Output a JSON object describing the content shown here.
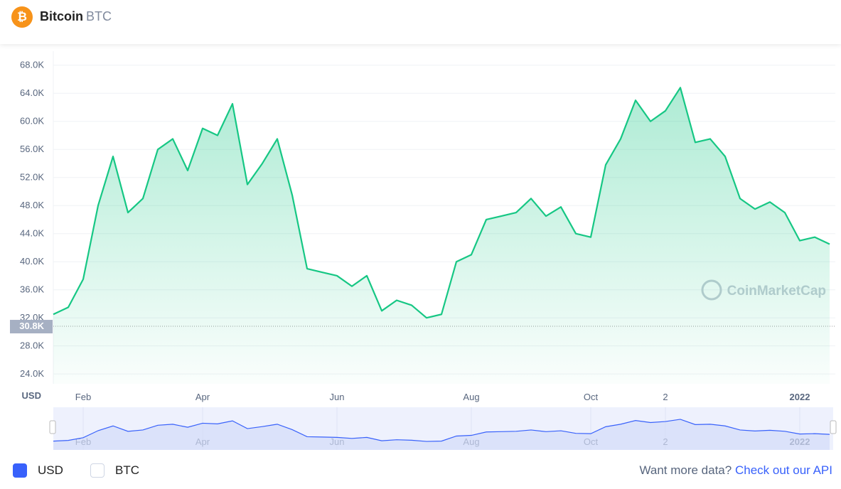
{
  "header": {
    "name": "Bitcoin",
    "symbol": "BTC"
  },
  "chart_data": {
    "type": "line",
    "unit": "USD",
    "categories": [
      null,
      null,
      "Feb",
      null,
      null,
      null,
      null,
      null,
      null,
      null,
      "Apr",
      null,
      null,
      null,
      null,
      null,
      null,
      null,
      null,
      "Jun",
      null,
      null,
      null,
      null,
      null,
      null,
      null,
      null,
      "Aug",
      null,
      null,
      null,
      null,
      null,
      null,
      null,
      "Oct",
      null,
      null,
      null,
      null,
      "2",
      null,
      null,
      null,
      null,
      null,
      null,
      null,
      null,
      "2022",
      null,
      null
    ],
    "series": [
      {
        "name": "USD",
        "color": "#16c784",
        "values": [
          32500,
          33500,
          37500,
          48000,
          55000,
          47000,
          49000,
          56000,
          57500,
          53000,
          59000,
          58000,
          62500,
          51000,
          54000,
          57500,
          49500,
          39000,
          38500,
          38000,
          36500,
          38000,
          33000,
          34500,
          33800,
          32000,
          32500,
          40000,
          41000,
          46000,
          46500,
          47000,
          49000,
          46500,
          47800,
          44000,
          43500,
          53800,
          57500,
          63000,
          60000,
          61500,
          64800,
          57000,
          57500,
          55000,
          49000,
          47500,
          48500,
          47000,
          43000,
          43500,
          42500
        ]
      }
    ],
    "ylim": [
      22600,
      70000
    ],
    "yticks": [
      {
        "value": 24000,
        "label": "24.0K"
      },
      {
        "value": 28000,
        "label": "28.0K"
      },
      {
        "value": 32000,
        "label": "32.0K"
      },
      {
        "value": 36000,
        "label": "36.0K"
      },
      {
        "value": 40000,
        "label": "40.0K"
      },
      {
        "value": 44000,
        "label": "44.0K"
      },
      {
        "value": 48000,
        "label": "48.0K"
      },
      {
        "value": 52000,
        "label": "52.0K"
      },
      {
        "value": 56000,
        "label": "56.0K"
      },
      {
        "value": 60000,
        "label": "60.0K"
      },
      {
        "value": 64000,
        "label": "64.0K"
      },
      {
        "value": 68000,
        "label": "68.0K"
      }
    ],
    "marker": {
      "value": 30800,
      "label": "30.8K"
    },
    "watermark": "CoinMarketCap",
    "grid": true
  },
  "currencies": [
    {
      "label": "USD",
      "checked": true
    },
    {
      "label": "BTC",
      "checked": false
    }
  ],
  "footer": {
    "prompt": "Want more data?",
    "link": "Check out our API"
  }
}
